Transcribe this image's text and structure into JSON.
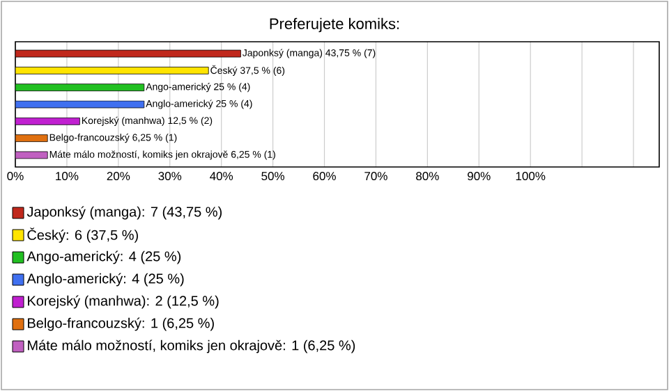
{
  "chart_data": {
    "type": "bar",
    "orientation": "horizontal",
    "title": "Preferujete komiks:",
    "categories": [
      null,
      null,
      null,
      null,
      null,
      null,
      null
    ],
    "values": [
      43.75,
      37.5,
      25,
      25,
      12.5,
      6.25,
      6.25
    ],
    "colors": [
      "#c0281c",
      "#ffe400",
      "#22c022",
      "#4070f0",
      "#c020d0",
      "#e07010",
      "#c060c0"
    ],
    "value_labels": [
      "Japonksý (manga) 43,75 % (7)",
      "Český 37,5 % (6)",
      "Ango-americký 25 % (4)",
      "Anglo-americký 25 % (4)",
      "Korejský (manhwa) 12,5 % (2)",
      "Belgo-francouzský 6,25 % (1)",
      "Máte málo možností, komiks jen okrajově 6,25 % (1)"
    ],
    "xlim": [
      0,
      125
    ],
    "xticks": [
      {
        "value": 0,
        "label": "0%"
      },
      {
        "value": 10,
        "label": "10%"
      },
      {
        "value": 20,
        "label": "20%"
      },
      {
        "value": 30,
        "label": "30%"
      },
      {
        "value": 40,
        "label": "40%"
      },
      {
        "value": 50,
        "label": "50%"
      },
      {
        "value": 60,
        "label": "60%"
      },
      {
        "value": 70,
        "label": "70%"
      },
      {
        "value": 80,
        "label": "80%"
      },
      {
        "value": 90,
        "label": "90%"
      },
      {
        "value": 100,
        "label": "100%"
      },
      {
        "value": 110,
        "label": null
      },
      {
        "value": 120,
        "label": null
      }
    ],
    "grid": "x",
    "annotations": [
      "Japonksý (manga): 7 (43,75 %)",
      "Český: 6 (37,5 %)",
      "Ango-americký: 4 (25 %)",
      "Anglo-americký: 4 (25 %)",
      "Korejský (manhwa): 2 (12,5 %)",
      "Belgo-francouzský: 1 (6,25 %)",
      "Máte málo možností, komiks jen okrajově: 1 (6,25 %)"
    ]
  }
}
